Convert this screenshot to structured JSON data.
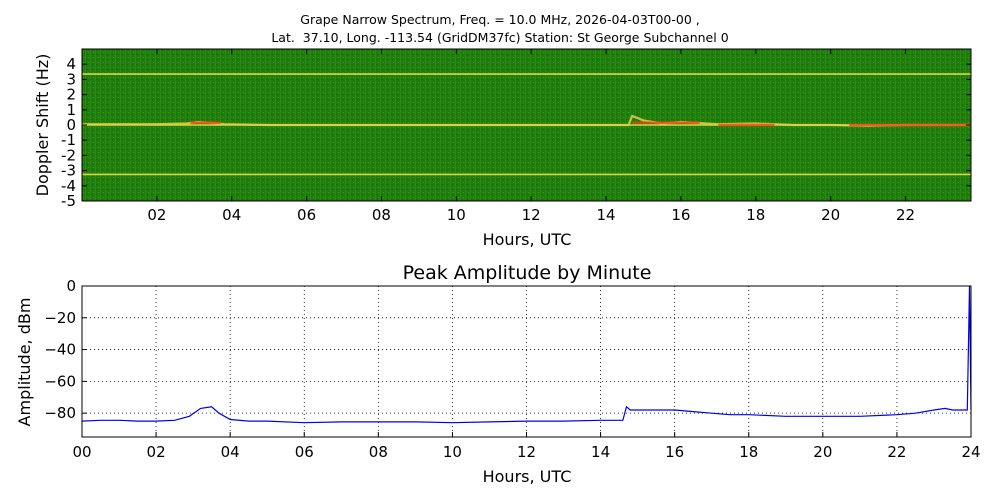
{
  "figure": {
    "title_line1": "Grape Narrow Spectrum, Freq. = 10.0 MHz, 2026-04-03T00-00 ,",
    "title_line2": "Lat.  37.10, Long. -113.54 (GridDM37fc) Station: St George Subchannel 0"
  },
  "chart_data": [
    {
      "type": "heatmap",
      "title": "",
      "xlabel": "Hours, UTC",
      "ylabel": "Doppler Shift (Hz)",
      "xlim": [
        0,
        23.75
      ],
      "ylim": [
        -5,
        5
      ],
      "xticks": [
        2,
        4,
        6,
        8,
        10,
        12,
        14,
        16,
        18,
        20,
        22
      ],
      "xtick_labels": [
        "02",
        "04",
        "06",
        "08",
        "10",
        "12",
        "14",
        "16",
        "18",
        "20",
        "22"
      ],
      "yticks": [
        4,
        3,
        2,
        1,
        0,
        -1,
        -2,
        -3,
        -4,
        -5
      ],
      "ytick_labels": [
        "4",
        "3",
        "2",
        "1",
        "0",
        "-1",
        "-2",
        "-3",
        "-4",
        "-5"
      ],
      "colors": {
        "background": "#1f7d0d",
        "noise_light": "#3a9a1a",
        "line": "#f0e04a",
        "hot": "#ff3a10"
      },
      "constant_lines_hz": [
        3.35,
        0.0,
        -3.25
      ],
      "doppler_trace": [
        [
          0.0,
          0.05
        ],
        [
          1.0,
          0.05
        ],
        [
          2.0,
          0.05
        ],
        [
          2.8,
          0.1
        ],
        [
          3.1,
          0.2
        ],
        [
          3.4,
          0.15
        ],
        [
          3.8,
          0.05
        ],
        [
          5.0,
          0.0
        ],
        [
          6.0,
          0.0
        ],
        [
          8.0,
          0.0
        ],
        [
          10.0,
          0.0
        ],
        [
          12.0,
          0.0
        ],
        [
          14.0,
          0.0
        ],
        [
          14.6,
          0.0
        ],
        [
          14.7,
          0.6
        ],
        [
          15.0,
          0.3
        ],
        [
          15.5,
          0.1
        ],
        [
          16.0,
          0.2
        ],
        [
          17.0,
          0.05
        ],
        [
          18.0,
          0.1
        ],
        [
          19.0,
          0.0
        ],
        [
          20.0,
          0.0
        ],
        [
          21.0,
          -0.05
        ],
        [
          22.0,
          0.0
        ],
        [
          23.0,
          0.0
        ],
        [
          23.75,
          0.0
        ]
      ],
      "hot_spots": [
        {
          "x_start": 2.9,
          "x_end": 3.7,
          "y": 0.15
        },
        {
          "x_start": 14.7,
          "x_end": 16.5,
          "y": 0.15
        },
        {
          "x_start": 17.0,
          "x_end": 18.5,
          "y": 0.0
        },
        {
          "x_start": 20.5,
          "x_end": 23.75,
          "y": 0.0
        }
      ]
    },
    {
      "type": "line",
      "title": "Peak Amplitude by Minute",
      "xlabel": "Hours, UTC",
      "ylabel": "Amplitude, dBm",
      "xlim": [
        0,
        24
      ],
      "ylim": [
        -95,
        0
      ],
      "xticks": [
        0,
        2,
        4,
        6,
        8,
        10,
        12,
        14,
        16,
        18,
        20,
        22,
        24
      ],
      "xtick_labels": [
        "00",
        "02",
        "04",
        "06",
        "08",
        "10",
        "12",
        "14",
        "16",
        "18",
        "20",
        "22",
        "24"
      ],
      "yticks": [
        0,
        -20,
        -40,
        -60,
        -80
      ],
      "ytick_labels": [
        "0",
        "−20",
        "−40",
        "−60",
        "−80"
      ],
      "grid": true,
      "line_color": "#0000ee",
      "series": [
        {
          "x": [
            0,
            0.5,
            1,
            1.5,
            2,
            2.5,
            2.9,
            3.2,
            3.5,
            3.7,
            4,
            4.5,
            5,
            6,
            7,
            8,
            9,
            10,
            11,
            12,
            13,
            14,
            14.6,
            14.7,
            14.8,
            15,
            15.5,
            16,
            16.5,
            17,
            17.5,
            18,
            19,
            20,
            21,
            22,
            22.5,
            23,
            23.3,
            23.5,
            23.9,
            23.96,
            24
          ],
          "y": [
            -85,
            -84.5,
            -84.5,
            -85,
            -85,
            -84.5,
            -82,
            -77,
            -76,
            -80,
            -84,
            -85,
            -85,
            -86,
            -85.5,
            -85.5,
            -85.5,
            -86,
            -85.5,
            -85,
            -85,
            -84.5,
            -84.5,
            -76,
            -78,
            -78,
            -78,
            -78,
            -79,
            -80,
            -81,
            -81,
            -82,
            -82,
            -82,
            -81,
            -80,
            -78,
            -77,
            -78,
            -78,
            0,
            -78
          ]
        }
      ]
    }
  ]
}
